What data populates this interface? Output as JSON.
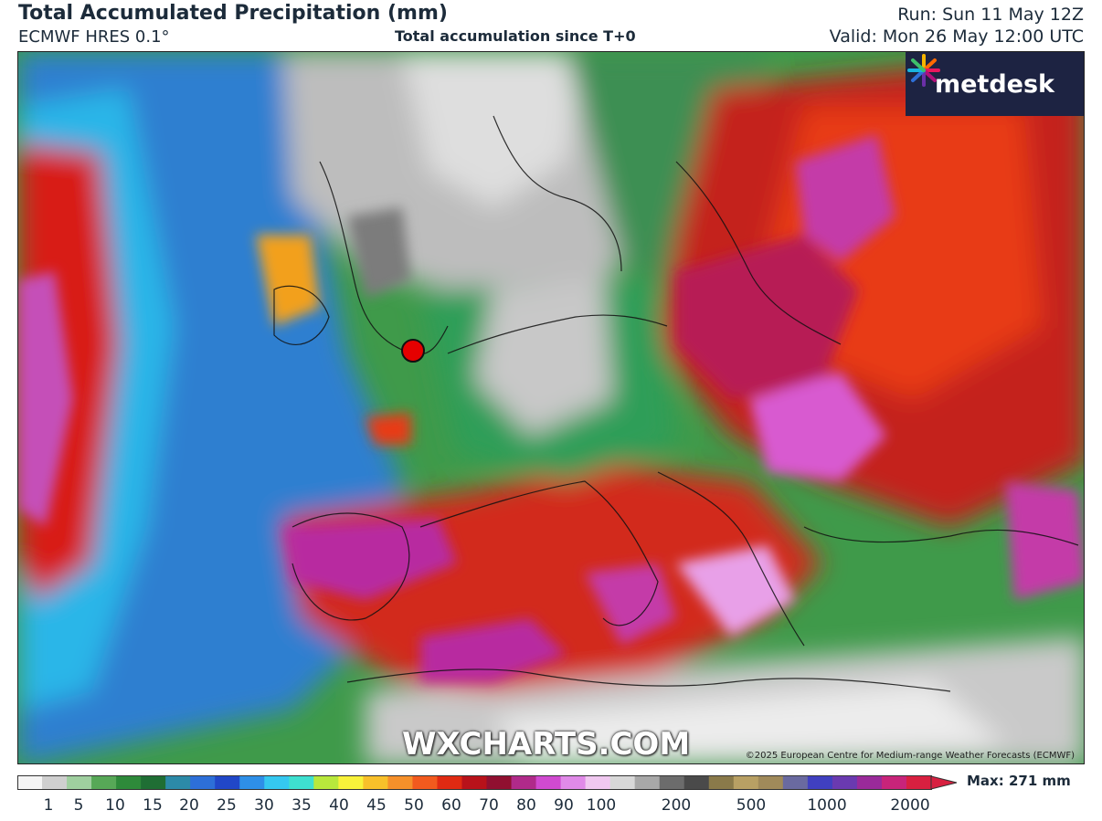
{
  "header": {
    "title": "Total Accumulated Precipitation (mm)",
    "model": "ECMWF HRES 0.1°",
    "subtitle": "Total accumulation since T+0",
    "run": "Run: Sun 11 May 12Z",
    "valid": "Valid: Mon 26 May 12:00 UTC"
  },
  "map": {
    "logo_text": "metdesk",
    "watermark": "WXCHARTS.COM",
    "copyright": "©2025 European Centre for Medium-range Weather Forecasts (ECMWF)",
    "marker_icon": "location-marker-icon"
  },
  "legend": {
    "max_label": "Max: 271 mm",
    "ticks": [
      "1",
      "5",
      "10",
      "15",
      "20",
      "25",
      "30",
      "35",
      "40",
      "45",
      "50",
      "60",
      "70",
      "80",
      "90",
      "100",
      "200",
      "500",
      "1000",
      "2000"
    ],
    "colors": [
      "#f4f4f4",
      "#cfcfcf",
      "#9fcf9f",
      "#57a857",
      "#2e8a3a",
      "#1f6e34",
      "#2c8aa8",
      "#2d6fd8",
      "#2147c8",
      "#2e8fe8",
      "#35c8f0",
      "#3ee0d0",
      "#b8e83c",
      "#f8f23a",
      "#f8c02a",
      "#f6902a",
      "#f25a1e",
      "#e02a12",
      "#b8121a",
      "#901030",
      "#b02a8a",
      "#d04ad0",
      "#e08ae8",
      "#f0c8f0",
      "#d8d8d8",
      "#a8a8a8",
      "#6c6c6c",
      "#4a4a4a",
      "#8a7a4a",
      "#b8a064",
      "#a08a5a",
      "#6a6aa0",
      "#4040c0",
      "#6a3ab0",
      "#9a2a9a",
      "#c8247a",
      "#d82040"
    ]
  }
}
